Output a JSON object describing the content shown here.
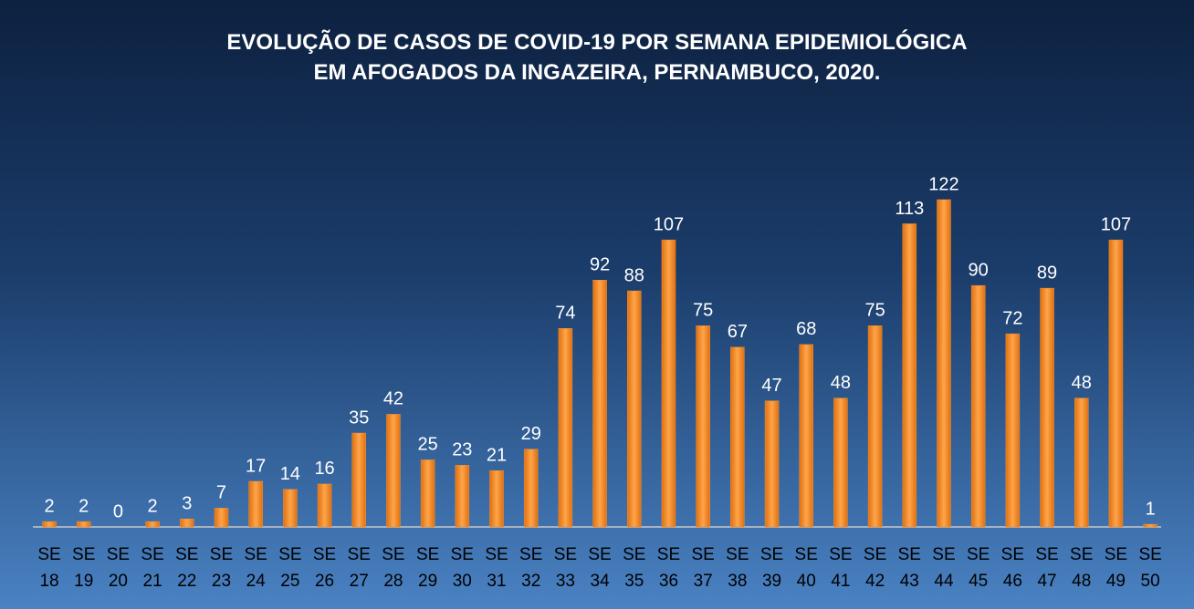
{
  "chart_data": {
    "type": "bar",
    "title": "EVOLUÇÃO DE CASOS DE COVID-19 POR SEMANA EPIDEMIOLÓGICA EM AFOGADOS DA INGAZEIRA, PERNAMBUCO, 2020.",
    "categories": [
      "SE 18",
      "SE 19",
      "SE 20",
      "SE 21",
      "SE 22",
      "SE 23",
      "SE 24",
      "SE 25",
      "SE 26",
      "SE 27",
      "SE 28",
      "SE 29",
      "SE 30",
      "SE 31",
      "SE 32",
      "SE 33",
      "SE 34",
      "SE 35",
      "SE 36",
      "SE 37",
      "SE 38",
      "SE 39",
      "SE 40",
      "SE 41",
      "SE 42",
      "SE 43",
      "SE 44",
      "SE 45",
      "SE 46",
      "SE 47",
      "SE 48",
      "SE 49",
      "SE 50"
    ],
    "values": [
      2,
      2,
      0,
      2,
      3,
      7,
      17,
      14,
      16,
      35,
      42,
      25,
      23,
      21,
      29,
      74,
      92,
      88,
      107,
      75,
      67,
      47,
      68,
      48,
      75,
      113,
      122,
      90,
      72,
      89,
      48,
      107,
      1
    ],
    "color": "#f7902b"
  }
}
